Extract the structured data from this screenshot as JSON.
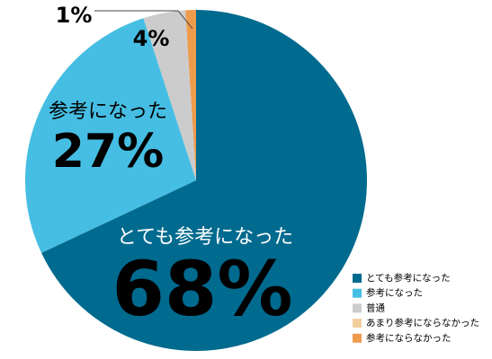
{
  "chart_data": {
    "type": "pie",
    "categories": [
      "とても参考になった",
      "参考になった",
      "普通",
      "あまり参考にならなかった",
      "参考にならなかった"
    ],
    "values": [
      68,
      27,
      4,
      0,
      1
    ],
    "value_labels": [
      "68%",
      "27%",
      "4%",
      null,
      "1%"
    ],
    "colors": [
      "#006a8f",
      "#46bee3",
      "#cccccc",
      "#f2d09e",
      "#ef9b4c"
    ],
    "legend": "lower right"
  }
}
